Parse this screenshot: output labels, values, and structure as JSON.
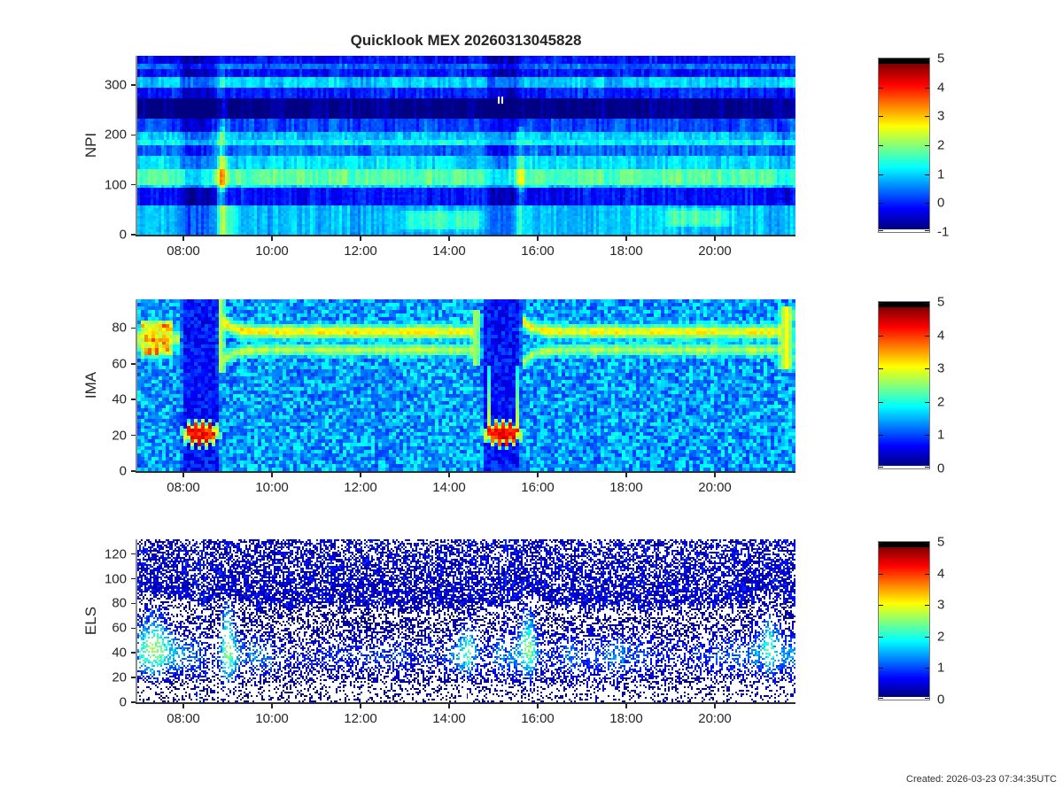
{
  "title": "Quicklook MEX 20260313045828",
  "footer": "Created: 2026-03-23 07:34:35UTC",
  "colors": {
    "background": "#ffffff",
    "text": "#262626",
    "axis": "#2e2e2e"
  },
  "xticks": {
    "hours": [
      8,
      10,
      12,
      14,
      16,
      18,
      20
    ],
    "labels": [
      "08:00",
      "10:00",
      "12:00",
      "14:00",
      "16:00",
      "18:00",
      "20:00"
    ]
  },
  "panels": [
    {
      "ylabel": "NPI",
      "yticks": [
        0,
        100,
        200,
        300
      ],
      "ylim": [
        0,
        359
      ],
      "clim": [
        -1,
        5
      ],
      "cticks": [
        -1,
        0,
        1,
        2,
        3,
        4,
        5
      ],
      "renderer": "npi",
      "chart_data_index": 0
    },
    {
      "ylabel": "IMA",
      "yticks": [
        0,
        20,
        40,
        60,
        80
      ],
      "ylim": [
        0,
        96
      ],
      "clim": [
        0,
        5
      ],
      "cticks": [
        0,
        1,
        2,
        3,
        4,
        5
      ],
      "renderer": "ima",
      "chart_data_index": 1
    },
    {
      "ylabel": "ELS",
      "yticks": [
        0,
        20,
        40,
        60,
        80,
        100,
        120
      ],
      "ylim": [
        0,
        132
      ],
      "clim": [
        0,
        5
      ],
      "cticks": [
        0,
        1,
        2,
        3,
        4,
        5
      ],
      "renderer": "els",
      "chart_data_index": 2
    }
  ],
  "chart_data": [
    {
      "type": "heatmap",
      "title": "NPI energy-time spectrogram (log counts)",
      "x": {
        "range_hours": [
          6.96,
          21.82
        ],
        "tick_labels": [
          "08:00",
          "10:00",
          "12:00",
          "14:00",
          "16:00",
          "18:00",
          "20:00"
        ]
      },
      "y": {
        "range": [
          0,
          359
        ],
        "ticks": [
          0,
          100,
          200,
          300
        ]
      },
      "color": {
        "range": [
          -1,
          5
        ],
        "ticks": [
          -1,
          0,
          1,
          2,
          3,
          4,
          5
        ],
        "map": "jet-white-floor-black-cap"
      },
      "bands": [
        {
          "y0": 0,
          "y1": 57,
          "v": 1.5
        },
        {
          "y0": 57,
          "y1": 95,
          "v": 0.45
        },
        {
          "y0": 95,
          "y1": 101,
          "v": 1.7
        },
        {
          "y0": 101,
          "y1": 133,
          "v": 2.4
        },
        {
          "y0": 133,
          "y1": 160,
          "v": 1.7
        },
        {
          "y0": 160,
          "y1": 181,
          "v": 1.0
        },
        {
          "y0": 181,
          "y1": 190,
          "v": 1.9
        },
        {
          "y0": 190,
          "y1": 208,
          "v": 1.55
        },
        {
          "y0": 208,
          "y1": 231,
          "v": 0.8
        },
        {
          "y0": 231,
          "y1": 276,
          "v": -0.35
        },
        {
          "y0": 276,
          "y1": 297,
          "v": 0.55
        },
        {
          "y0": 297,
          "y1": 315,
          "v": 1.6
        },
        {
          "y0": 315,
          "y1": 334,
          "v": 0.5
        },
        {
          "y0": 334,
          "y1": 344,
          "v": 1.0
        },
        {
          "y0": 344,
          "y1": 359,
          "v": 0.45
        }
      ],
      "events": [
        {
          "type": "dim",
          "t0": 7.95,
          "t1": 8.7,
          "y0": 0,
          "y1": 359,
          "amount": -0.55
        },
        {
          "type": "streak",
          "tc": 8.87,
          "sigma": 0.07,
          "y0": 0,
          "y1": 215,
          "yp0": 85,
          "yp1": 160,
          "amount": 1.7
        },
        {
          "type": "streak",
          "tc": 8.87,
          "sigma": 0.09,
          "y0": 215,
          "y1": 359,
          "yp0": 215,
          "yp1": 359,
          "amount": 0.45
        },
        {
          "type": "streak",
          "tc": 8.98,
          "sigma": 0.18,
          "y0": 0,
          "y1": 60,
          "yp0": 0,
          "yp1": 60,
          "amount": 0.7
        },
        {
          "type": "dim",
          "t0": 14.85,
          "t1": 15.55,
          "y0": 0,
          "y1": 359,
          "amount": -0.5
        },
        {
          "type": "streak",
          "tc": 15.63,
          "sigma": 0.07,
          "y0": 0,
          "y1": 215,
          "yp0": 85,
          "yp1": 160,
          "amount": 1.2
        },
        {
          "type": "blob",
          "t0": 12.7,
          "t1": 15.0,
          "y0": 5,
          "y1": 52,
          "amount": 0.75
        },
        {
          "type": "blob",
          "t0": 18.7,
          "t1": 20.6,
          "y0": 12,
          "y1": 55,
          "amount": 0.85
        },
        {
          "type": "blob",
          "t0": 21.25,
          "t1": 21.82,
          "y0": 60,
          "y1": 230,
          "amount": -0.8
        },
        {
          "type": "whitemark",
          "t": 15.1,
          "y": 277
        },
        {
          "type": "whitemark",
          "t": 15.18,
          "y": 277
        }
      ]
    },
    {
      "type": "heatmap",
      "title": "IMA energy-time spectrogram (log counts)",
      "x": {
        "range_hours": [
          6.96,
          21.82
        ],
        "tick_labels": [
          "08:00",
          "10:00",
          "12:00",
          "14:00",
          "16:00",
          "18:00",
          "20:00"
        ]
      },
      "y": {
        "range": [
          0,
          96
        ],
        "ticks": [
          0,
          20,
          40,
          60,
          80
        ]
      },
      "color": {
        "range": [
          0,
          5
        ],
        "ticks": [
          0,
          1,
          2,
          3,
          4,
          5
        ],
        "map": "jet-white-floor-black-cap"
      },
      "bg": {
        "base": 2.05,
        "noise": 0.55,
        "speckle_p": 0.05,
        "speckle_v": 1.2
      },
      "features": [
        {
          "type": "patch",
          "t0": 6.96,
          "t1": 7.82,
          "y0": 62,
          "y1": 86,
          "v": 3.4
        },
        {
          "type": "hline",
          "t0": 6.96,
          "t1": 7.9,
          "y": 74,
          "halfw": 3.6,
          "v": 3.0,
          "taper": 0
        },
        {
          "type": "column",
          "t0": 7.97,
          "t1": 8.8,
          "v": 1.05
        },
        {
          "type": "arc",
          "t0": 8.08,
          "t1": 8.72,
          "yc": 21,
          "ry": 5,
          "v": 4.6
        },
        {
          "type": "vsmear",
          "tc": 8.86,
          "w": 0.05,
          "y0": 55,
          "y1": 96,
          "v": 2.9
        },
        {
          "type": "hline",
          "t0": 8.88,
          "t1": 14.52,
          "y": 78,
          "halfw": 2.6,
          "v": 3.45,
          "taper": 6
        },
        {
          "type": "hline",
          "t0": 8.88,
          "t1": 14.52,
          "y": 67.5,
          "halfw": 2.2,
          "v": 3.05,
          "taper": -7
        },
        {
          "type": "vsmear",
          "tc": 14.62,
          "w": 0.06,
          "y0": 58,
          "y1": 90,
          "v": 2.8
        },
        {
          "type": "column",
          "t0": 14.78,
          "t1": 15.62,
          "v": 1.05
        },
        {
          "type": "arc",
          "t0": 14.88,
          "t1": 15.56,
          "yc": 21,
          "ry": 5,
          "v": 4.6
        },
        {
          "type": "hline",
          "t0": 15.68,
          "t1": 21.52,
          "y": 78,
          "halfw": 2.6,
          "v": 3.4,
          "taper": 6
        },
        {
          "type": "hline",
          "t0": 15.68,
          "t1": 21.52,
          "y": 67.5,
          "halfw": 2.2,
          "v": 3.0,
          "taper": -7
        },
        {
          "type": "vsmear",
          "tc": 21.62,
          "w": 0.11,
          "y0": 56,
          "y1": 92,
          "v": 3.1
        }
      ]
    },
    {
      "type": "heatmap",
      "title": "ELS energy-time spectrogram (log counts)",
      "x": {
        "range_hours": [
          6.96,
          21.82
        ],
        "tick_labels": [
          "08:00",
          "10:00",
          "12:00",
          "14:00",
          "16:00",
          "18:00",
          "20:00"
        ]
      },
      "y": {
        "range": [
          0,
          132
        ],
        "ticks": [
          0,
          20,
          40,
          60,
          80,
          100,
          120
        ]
      },
      "color": {
        "range": [
          0,
          5
        ],
        "ticks": [
          0,
          1,
          2,
          3,
          4,
          5
        ],
        "map": "jet-white-floor-black-cap"
      },
      "boundary": {
        "base": 81,
        "noise": 9,
        "bulge": 10
      },
      "bg": {
        "blue_base": 0.72,
        "blue_noise": 0.5,
        "dot_p": 0.32,
        "dot_falloff": 55,
        "white_low_p": 0.26,
        "white_mid_p": 0.05,
        "white_edge_p": 0.18
      },
      "band": {
        "yc": 38,
        "sigma": 11,
        "amp": 1.45
      },
      "blobs": [
        {
          "tc": 7.35,
          "st": 0.3,
          "yc": 50,
          "sy": 17,
          "amp": 1.5
        },
        {
          "tc": 9.0,
          "st": 0.11,
          "yc": 47,
          "sy": 24,
          "amp": 1.9
        },
        {
          "tc": 14.45,
          "st": 0.14,
          "yc": 46,
          "sy": 15,
          "amp": 1.05
        },
        {
          "tc": 15.78,
          "st": 0.13,
          "yc": 50,
          "sy": 18,
          "amp": 1.7
        },
        {
          "tc": 21.22,
          "st": 0.16,
          "yc": 47,
          "sy": 16,
          "amp": 1.5
        }
      ],
      "gaps": [
        [
          8.27,
          8.31
        ],
        [
          8.37,
          8.41
        ],
        [
          8.49,
          8.52
        ],
        [
          15.27,
          15.3
        ]
      ]
    }
  ]
}
